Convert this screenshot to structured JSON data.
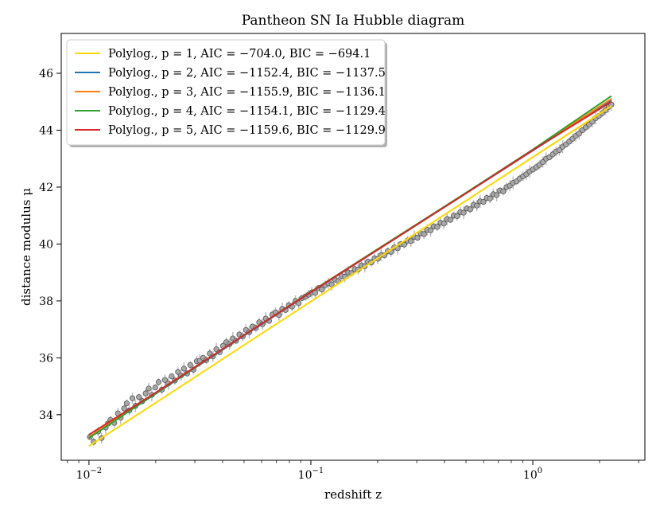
{
  "chart_data": {
    "type": "scatter",
    "title": "Pantheon SN Ia Hubble diagram",
    "xlabel": "redshift z",
    "ylabel": "distance modulus μ",
    "xscale": "log",
    "xlim": [
      0.0075,
      3.2
    ],
    "ylim": [
      32.4,
      47.4
    ],
    "x_ticks": [
      {
        "value": 0.01,
        "base": "10",
        "exp": "−2"
      },
      {
        "value": 0.1,
        "base": "10",
        "exp": "−1"
      },
      {
        "value": 1,
        "base": "10",
        "exp": "0"
      }
    ],
    "y_ticks": [
      {
        "value": 34,
        "label": "34"
      },
      {
        "value": 36,
        "label": "36"
      },
      {
        "value": 38,
        "label": "38"
      },
      {
        "value": 40,
        "label": "40"
      },
      {
        "value": 42,
        "label": "42"
      },
      {
        "value": 44,
        "label": "44"
      },
      {
        "value": 46,
        "label": "46"
      }
    ],
    "grid": false,
    "legend_position": "top-left",
    "points": {
      "name": "Pantheon SN Ia",
      "color": "#a9a9a9",
      "edge_color": "#555555",
      "error_color": "#bdbdbd",
      "data": [
        [
          0.0101,
          33.22
        ],
        [
          0.0105,
          33.05
        ],
        [
          0.011,
          33.41
        ],
        [
          0.0114,
          33.18
        ],
        [
          0.0119,
          33.55
        ],
        [
          0.0122,
          33.69
        ],
        [
          0.0125,
          33.82
        ],
        [
          0.013,
          33.71
        ],
        [
          0.0135,
          34.05
        ],
        [
          0.0139,
          33.9
        ],
        [
          0.0144,
          34.22
        ],
        [
          0.0148,
          34.4
        ],
        [
          0.0152,
          34.15
        ],
        [
          0.0157,
          34.58
        ],
        [
          0.0162,
          34.31
        ],
        [
          0.0168,
          34.62
        ],
        [
          0.0174,
          34.48
        ],
        [
          0.018,
          34.75
        ],
        [
          0.0186,
          34.92
        ],
        [
          0.0192,
          34.7
        ],
        [
          0.0199,
          34.96
        ],
        [
          0.0206,
          35.15
        ],
        [
          0.0213,
          34.88
        ],
        [
          0.022,
          35.22
        ],
        [
          0.0228,
          35.1
        ],
        [
          0.0236,
          35.35
        ],
        [
          0.0244,
          35.2
        ],
        [
          0.0252,
          35.5
        ],
        [
          0.026,
          35.38
        ],
        [
          0.0268,
          35.62
        ],
        [
          0.0277,
          35.45
        ],
        [
          0.0286,
          35.75
        ],
        [
          0.0296,
          35.58
        ],
        [
          0.0306,
          35.88
        ],
        [
          0.0316,
          35.9
        ],
        [
          0.0327,
          36.0
        ],
        [
          0.0338,
          35.92
        ],
        [
          0.035,
          36.15
        ],
        [
          0.0362,
          36.05
        ],
        [
          0.0375,
          36.3
        ],
        [
          0.0388,
          36.2
        ],
        [
          0.0402,
          36.42
        ],
        [
          0.0416,
          36.55
        ],
        [
          0.043,
          36.48
        ],
        [
          0.0445,
          36.68
        ],
        [
          0.046,
          36.6
        ],
        [
          0.0476,
          36.82
        ],
        [
          0.0493,
          36.75
        ],
        [
          0.051,
          36.98
        ],
        [
          0.0528,
          36.9
        ],
        [
          0.0546,
          37.1
        ],
        [
          0.0565,
          37.05
        ],
        [
          0.0585,
          37.25
        ],
        [
          0.0605,
          37.18
        ],
        [
          0.0626,
          37.38
        ],
        [
          0.0648,
          37.3
        ],
        [
          0.067,
          37.52
        ],
        [
          0.0694,
          37.6
        ],
        [
          0.0718,
          37.5
        ],
        [
          0.0743,
          37.72
        ],
        [
          0.0769,
          37.68
        ],
        [
          0.0795,
          37.85
        ],
        [
          0.0823,
          37.8
        ],
        [
          0.0852,
          38.0
        ],
        [
          0.0881,
          37.92
        ],
        [
          0.0912,
          38.1
        ],
        [
          0.0944,
          38.15
        ],
        [
          0.0977,
          38.22
        ],
        [
          0.101,
          38.3
        ],
        [
          0.1046,
          38.28
        ],
        [
          0.1082,
          38.45
        ],
        [
          0.112,
          38.4
        ],
        [
          0.1159,
          38.55
        ],
        [
          0.1199,
          38.62
        ],
        [
          0.1241,
          38.58
        ],
        [
          0.1284,
          38.75
        ],
        [
          0.1329,
          38.7
        ],
        [
          0.1375,
          38.88
        ],
        [
          0.1423,
          38.85
        ],
        [
          0.1473,
          39.0
        ],
        [
          0.1524,
          38.98
        ],
        [
          0.1577,
          39.12
        ],
        [
          0.1632,
          39.1
        ],
        [
          0.1689,
          39.25
        ],
        [
          0.1748,
          39.22
        ],
        [
          0.1809,
          39.38
        ],
        [
          0.1872,
          39.35
        ],
        [
          0.1937,
          39.5
        ],
        [
          0.2004,
          39.48
        ],
        [
          0.2074,
          39.62
        ],
        [
          0.2146,
          39.6
        ],
        [
          0.2221,
          39.75
        ],
        [
          0.2298,
          39.72
        ],
        [
          0.2378,
          39.88
        ],
        [
          0.2461,
          39.85
        ],
        [
          0.2547,
          40.0
        ],
        [
          0.2635,
          39.98
        ],
        [
          0.2727,
          40.12
        ],
        [
          0.2822,
          40.1
        ],
        [
          0.292,
          40.25
        ],
        [
          0.3022,
          40.22
        ],
        [
          0.3127,
          40.38
        ],
        [
          0.3236,
          40.35
        ],
        [
          0.3349,
          40.5
        ],
        [
          0.3465,
          40.48
        ],
        [
          0.3586,
          40.62
        ],
        [
          0.3711,
          40.6
        ],
        [
          0.384,
          40.75
        ],
        [
          0.3974,
          40.72
        ],
        [
          0.4112,
          40.88
        ],
        [
          0.4255,
          40.85
        ],
        [
          0.4404,
          41.0
        ],
        [
          0.4557,
          40.98
        ],
        [
          0.4716,
          41.12
        ],
        [
          0.488,
          41.1
        ],
        [
          0.505,
          41.25
        ],
        [
          0.5226,
          41.22
        ],
        [
          0.5408,
          41.38
        ],
        [
          0.5596,
          41.35
        ],
        [
          0.5791,
          41.5
        ],
        [
          0.5993,
          41.48
        ],
        [
          0.6202,
          41.62
        ],
        [
          0.6418,
          41.6
        ],
        [
          0.6641,
          41.75
        ],
        [
          0.6873,
          41.72
        ],
        [
          0.7112,
          41.88
        ],
        [
          0.736,
          41.85
        ],
        [
          0.7616,
          42.0
        ],
        [
          0.7881,
          42.05
        ],
        [
          0.8156,
          42.15
        ],
        [
          0.844,
          42.2
        ],
        [
          0.8734,
          42.3
        ],
        [
          0.9038,
          42.38
        ],
        [
          0.9353,
          42.45
        ],
        [
          0.9679,
          42.55
        ],
        [
          1.0016,
          42.62
        ],
        [
          1.0365,
          42.7
        ],
        [
          1.0726,
          42.78
        ],
        [
          1.1099,
          42.88
        ],
        [
          1.1486,
          43.0
        ],
        [
          1.1886,
          43.05
        ],
        [
          1.23,
          43.15
        ],
        [
          1.2729,
          43.25
        ],
        [
          1.3172,
          43.3
        ],
        [
          1.3631,
          43.42
        ],
        [
          1.4106,
          43.5
        ],
        [
          1.4597,
          43.6
        ],
        [
          1.5106,
          43.7
        ],
        [
          1.5632,
          43.8
        ],
        [
          1.6177,
          43.88
        ],
        [
          1.6741,
          44.0
        ],
        [
          1.7324,
          44.1
        ],
        [
          1.7927,
          44.2
        ],
        [
          1.8552,
          44.3
        ],
        [
          1.9198,
          44.42
        ],
        [
          1.9867,
          44.5
        ],
        [
          2.0559,
          44.6
        ],
        [
          2.1275,
          44.7
        ],
        [
          2.2016,
          44.82
        ],
        [
          2.26,
          44.9
        ]
      ]
    },
    "series": [
      {
        "name": "Polylog., p = 1, AIC = −704.0, BIC = −694.1",
        "label": "Polylog., p = 1, AIC = −704.0, BIC = −694.1",
        "color": "#ffd700",
        "x": [
          0.01,
          0.02,
          0.05,
          0.1,
          0.2,
          0.5,
          1.0,
          2.26
        ],
        "y": [
          32.9,
          34.42,
          36.45,
          37.98,
          39.5,
          41.52,
          43.05,
          44.85
        ]
      },
      {
        "name": "Polylog., p = 2, AIC = −1152.4, BIC = −1137.5",
        "label": "Polylog., p = 2, AIC = −1152.4, BIC = −1137.5",
        "color": "#1f77b4",
        "x": [
          0.01,
          0.02,
          0.05,
          0.1,
          0.2,
          0.5,
          1.0,
          2.26
        ],
        "y": [
          33.2,
          34.74,
          36.78,
          38.3,
          39.8,
          41.78,
          43.28,
          45.05
        ]
      },
      {
        "name": "Polylog., p = 3, AIC = −1155.9, BIC = −1136.1",
        "label": "Polylog., p = 3, AIC = −1155.9, BIC = −1136.1",
        "color": "#ff7f0e",
        "x": [
          0.01,
          0.02,
          0.05,
          0.1,
          0.2,
          0.5,
          1.0,
          2.26
        ],
        "y": [
          33.22,
          34.76,
          36.8,
          38.32,
          39.82,
          41.79,
          43.3,
          45.1
        ]
      },
      {
        "name": "Polylog., p = 4, AIC = −1154.1, BIC = −1129.4",
        "label": "Polylog., p = 4, AIC = −1154.1, BIC = −1129.4",
        "color": "#2ca02c",
        "x": [
          0.01,
          0.02,
          0.05,
          0.1,
          0.2,
          0.5,
          1.0,
          2.26
        ],
        "y": [
          33.18,
          34.75,
          36.8,
          38.32,
          39.82,
          41.8,
          43.32,
          45.2
        ]
      },
      {
        "name": "Polylog., p = 5, AIC = −1159.6, BIC = −1129.9",
        "label": "Polylog., p = 5, AIC = −1159.6, BIC = −1129.9",
        "color": "#d62728",
        "x": [
          0.01,
          0.02,
          0.05,
          0.1,
          0.2,
          0.5,
          1.0,
          2.26
        ],
        "y": [
          33.3,
          34.78,
          36.8,
          38.31,
          39.8,
          41.78,
          43.3,
          45.0
        ]
      }
    ]
  }
}
